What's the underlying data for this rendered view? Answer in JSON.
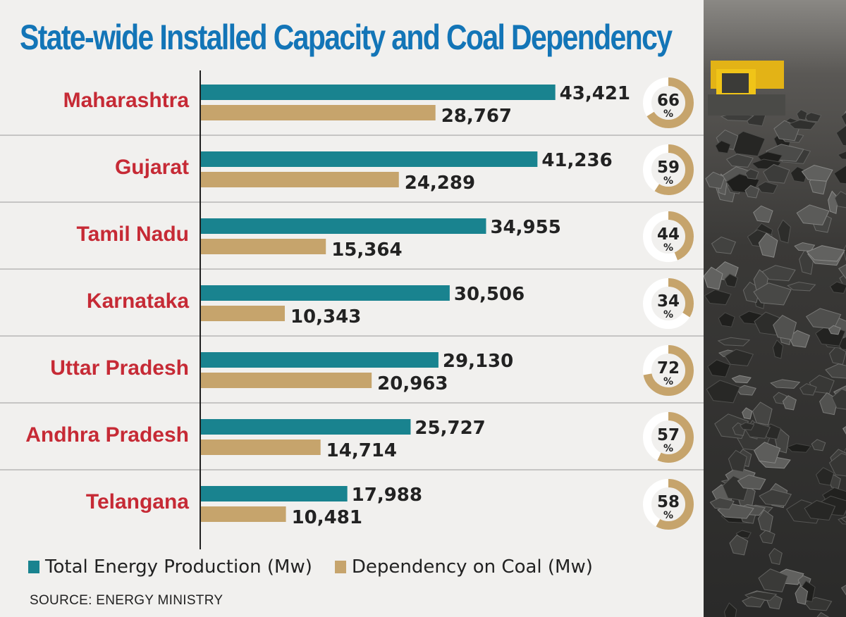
{
  "colors": {
    "total": "#19838f",
    "coal": "#c6a46c",
    "label": "#c62a35",
    "title": "#1375b7"
  },
  "photo": {
    "icon": "coal-mine-photo"
  },
  "chart_data": {
    "type": "bar",
    "orientation": "horizontal",
    "title": "State-wide Installed Capacity and Coal Dependency",
    "categories": [
      "Maharashtra",
      "Gujarat",
      "Tamil Nadu",
      "Karnataka",
      "Uttar Pradesh",
      "Andhra Pradesh",
      "Telangana"
    ],
    "series": [
      {
        "name": "Total Energy Production (Mw)",
        "values": [
          43421,
          41236,
          34955,
          30506,
          29130,
          25727,
          17988
        ],
        "labels": [
          "43,421",
          "41,236",
          "34,955",
          "30,506",
          "29,130",
          "25,727",
          "17,988"
        ]
      },
      {
        "name": "Dependency on Coal (Mw)",
        "values": [
          28767,
          24289,
          15364,
          10343,
          20963,
          14714,
          10481
        ],
        "labels": [
          "28,767",
          "24,289",
          "15,364",
          "10,343",
          "20,963",
          "14,714",
          "10,481"
        ]
      }
    ],
    "coal_share_percent": [
      66,
      59,
      44,
      34,
      72,
      57,
      58
    ],
    "percent_sign": "%",
    "xlim": [
      0,
      50000
    ],
    "grid": false,
    "legend": "bottom"
  },
  "source": "SOURCE: ENERGY MINISTRY"
}
